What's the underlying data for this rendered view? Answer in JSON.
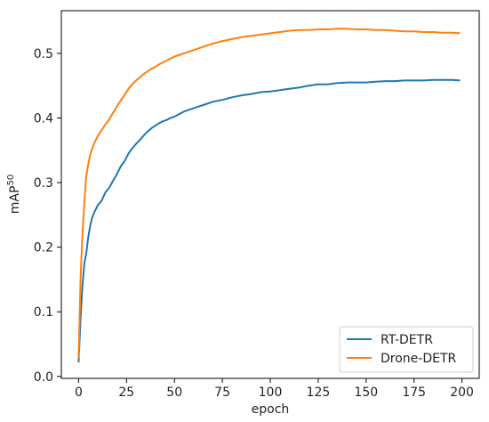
{
  "chart_data": {
    "type": "line",
    "xlabel": "epoch",
    "ylabel": "mAP",
    "ylabel_superscript": "50",
    "xlim": [
      -9,
      209
    ],
    "ylim": [
      -0.003,
      0.566
    ],
    "xticks": [
      0,
      25,
      50,
      75,
      100,
      125,
      150,
      175,
      200
    ],
    "yticks": [
      0.0,
      0.1,
      0.2,
      0.3,
      0.4,
      0.5
    ],
    "grid": false,
    "legend_position": "lower-right",
    "x": [
      0,
      1,
      2,
      3,
      4,
      5,
      6,
      7,
      8,
      10,
      12,
      14,
      16,
      18,
      20,
      22,
      24,
      26,
      28,
      30,
      32,
      34,
      36,
      38,
      40,
      42,
      44,
      46,
      48,
      50,
      55,
      60,
      65,
      70,
      75,
      80,
      85,
      90,
      95,
      100,
      105,
      110,
      115,
      120,
      125,
      130,
      135,
      140,
      145,
      150,
      155,
      160,
      165,
      170,
      175,
      180,
      185,
      190,
      195,
      199
    ],
    "series": [
      {
        "name": "RT-DETR",
        "color": "#1f77b4",
        "values": [
          0.022,
          0.09,
          0.14,
          0.175,
          0.19,
          0.215,
          0.232,
          0.245,
          0.253,
          0.265,
          0.272,
          0.285,
          0.292,
          0.303,
          0.313,
          0.325,
          0.333,
          0.345,
          0.353,
          0.36,
          0.366,
          0.373,
          0.379,
          0.384,
          0.388,
          0.392,
          0.395,
          0.397,
          0.4,
          0.402,
          0.41,
          0.415,
          0.42,
          0.425,
          0.428,
          0.432,
          0.435,
          0.437,
          0.44,
          0.441,
          0.443,
          0.445,
          0.447,
          0.45,
          0.452,
          0.452,
          0.454,
          0.455,
          0.455,
          0.455,
          0.456,
          0.457,
          0.457,
          0.458,
          0.458,
          0.458,
          0.459,
          0.459,
          0.459,
          0.458
        ]
      },
      {
        "name": "Drone-DETR",
        "color": "#ff7f0e",
        "values": [
          0.028,
          0.15,
          0.22,
          0.27,
          0.31,
          0.328,
          0.342,
          0.352,
          0.36,
          0.372,
          0.381,
          0.39,
          0.398,
          0.408,
          0.418,
          0.427,
          0.436,
          0.445,
          0.452,
          0.458,
          0.463,
          0.468,
          0.472,
          0.476,
          0.479,
          0.483,
          0.486,
          0.489,
          0.492,
          0.495,
          0.5,
          0.505,
          0.51,
          0.515,
          0.519,
          0.522,
          0.525,
          0.527,
          0.529,
          0.531,
          0.533,
          0.535,
          0.536,
          0.536,
          0.537,
          0.537,
          0.538,
          0.538,
          0.537,
          0.537,
          0.536,
          0.536,
          0.535,
          0.534,
          0.534,
          0.533,
          0.533,
          0.532,
          0.532,
          0.531
        ]
      }
    ]
  }
}
